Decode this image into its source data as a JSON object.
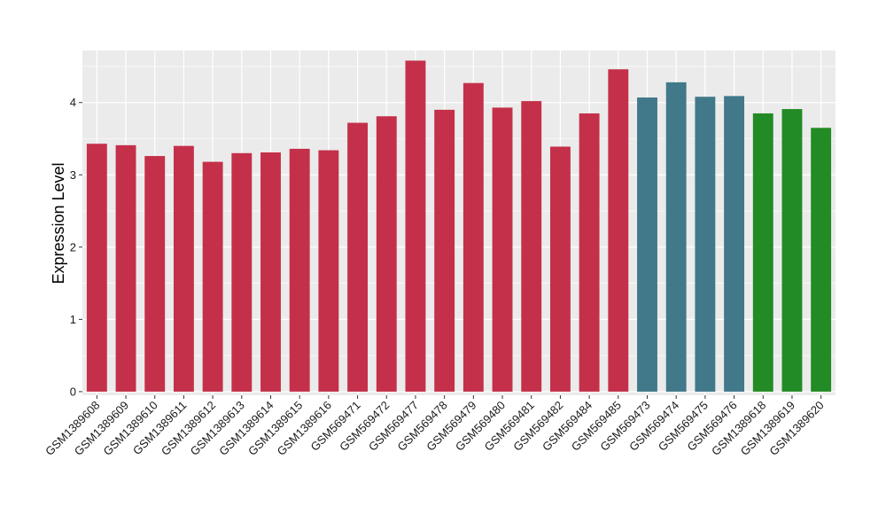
{
  "chart_data": {
    "type": "bar",
    "ylabel": "Expression Level",
    "xlabel": "",
    "ylim": [
      -0.05,
      4.72
    ],
    "yticks": [
      0,
      1,
      2,
      3,
      4
    ],
    "grid": true,
    "colors": {
      "group1": "#c4304a",
      "group2": "#41798a",
      "group3": "#238b25",
      "panel": "#ebebeb",
      "grid": "#ffffff"
    },
    "categories": [
      "GSM1389608",
      "GSM1389609",
      "GSM1389610",
      "GSM1389611",
      "GSM1389612",
      "GSM1389613",
      "GSM1389614",
      "GSM1389615",
      "GSM1389616",
      "GSM569471",
      "GSM569472",
      "GSM569477",
      "GSM569478",
      "GSM569479",
      "GSM569480",
      "GSM569481",
      "GSM569482",
      "GSM569484",
      "GSM569485",
      "GSM569473",
      "GSM569474",
      "GSM569475",
      "GSM569476",
      "GSM1389618",
      "GSM1389619",
      "GSM1389620"
    ],
    "values": [
      3.43,
      3.41,
      3.26,
      3.4,
      3.18,
      3.3,
      3.31,
      3.36,
      3.34,
      3.72,
      3.81,
      4.58,
      3.9,
      4.27,
      3.93,
      4.02,
      3.39,
      3.85,
      4.46,
      4.07,
      4.28,
      4.08,
      4.09,
      3.85,
      3.91,
      3.65
    ],
    "groups": [
      1,
      1,
      1,
      1,
      1,
      1,
      1,
      1,
      1,
      1,
      1,
      1,
      1,
      1,
      1,
      1,
      1,
      1,
      1,
      2,
      2,
      2,
      2,
      3,
      3,
      3
    ]
  }
}
